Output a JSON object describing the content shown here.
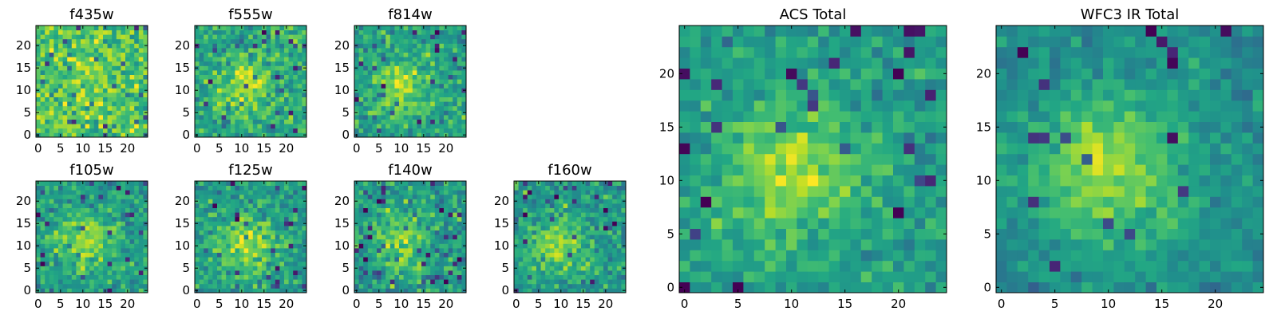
{
  "figure": {
    "colormap": "viridis",
    "frame_color": "#000000",
    "background": "#ffffff"
  },
  "chart_data": [
    {
      "type": "heatmap",
      "title": "f435w",
      "grid_size": 25,
      "xlim": [
        -0.5,
        24.5
      ],
      "ylim": [
        -0.5,
        24.5
      ],
      "origin": "lower",
      "x_ticks": [
        0,
        5,
        10,
        15,
        20
      ],
      "y_ticks": [
        0,
        5,
        10,
        15,
        20
      ],
      "x_tick_labels": [
        "0",
        "5",
        "10",
        "15",
        "20"
      ],
      "y_tick_labels": [
        "0",
        "5",
        "10",
        "15",
        "20"
      ],
      "structure": {
        "peak_center": [
          11,
          11
        ],
        "peak_amplitude": 0.05,
        "peak_sigma": 5,
        "noise": 0.24,
        "base": 0.72,
        "seed": 11
      }
    },
    {
      "type": "heatmap",
      "title": "f555w",
      "grid_size": 25,
      "xlim": [
        -0.5,
        24.5
      ],
      "ylim": [
        -0.5,
        24.5
      ],
      "origin": "lower",
      "x_ticks": [
        0,
        5,
        10,
        15,
        20
      ],
      "y_ticks": [
        0,
        5,
        10,
        15,
        20
      ],
      "x_tick_labels": [
        "0",
        "5",
        "10",
        "15",
        "20"
      ],
      "y_tick_labels": [
        "0",
        "5",
        "10",
        "15",
        "20"
      ],
      "structure": {
        "peak_center": [
          11,
          11
        ],
        "peak_amplitude": 0.22,
        "peak_sigma": 4,
        "noise": 0.22,
        "base": 0.62,
        "seed": 23
      }
    },
    {
      "type": "heatmap",
      "title": "f814w",
      "grid_size": 25,
      "xlim": [
        -0.5,
        24.5
      ],
      "ylim": [
        -0.5,
        24.5
      ],
      "origin": "lower",
      "x_ticks": [
        0,
        5,
        10,
        15,
        20
      ],
      "y_ticks": [
        0,
        5,
        10,
        15,
        20
      ],
      "x_tick_labels": [
        "0",
        "5",
        "10",
        "15",
        "20"
      ],
      "y_tick_labels": [
        "0",
        "5",
        "10",
        "15",
        "20"
      ],
      "structure": {
        "peak_center": [
          10,
          11
        ],
        "peak_amplitude": 0.3,
        "peak_sigma": 4,
        "noise": 0.2,
        "base": 0.58,
        "seed": 37
      }
    },
    {
      "type": "heatmap",
      "title": "f105w",
      "grid_size": 25,
      "xlim": [
        -0.5,
        24.5
      ],
      "ylim": [
        -0.5,
        24.5
      ],
      "origin": "lower",
      "x_ticks": [
        0,
        5,
        10,
        15,
        20
      ],
      "y_ticks": [
        0,
        5,
        10,
        15,
        20
      ],
      "x_tick_labels": [
        "0",
        "5",
        "10",
        "15",
        "20"
      ],
      "y_tick_labels": [
        "0",
        "5",
        "10",
        "15",
        "20"
      ],
      "structure": {
        "peak_center": [
          11,
          11
        ],
        "peak_amplitude": 0.3,
        "peak_sigma": 4.5,
        "noise": 0.18,
        "base": 0.55,
        "seed": 41
      }
    },
    {
      "type": "heatmap",
      "title": "f125w",
      "grid_size": 25,
      "xlim": [
        -0.5,
        24.5
      ],
      "ylim": [
        -0.5,
        24.5
      ],
      "origin": "lower",
      "x_ticks": [
        0,
        5,
        10,
        15,
        20
      ],
      "y_ticks": [
        0,
        5,
        10,
        15,
        20
      ],
      "x_tick_labels": [
        "0",
        "5",
        "10",
        "15",
        "20"
      ],
      "y_tick_labels": [
        "0",
        "5",
        "10",
        "15",
        "20"
      ],
      "structure": {
        "peak_center": [
          11,
          10
        ],
        "peak_amplitude": 0.3,
        "peak_sigma": 4.5,
        "noise": 0.2,
        "base": 0.56,
        "seed": 53
      }
    },
    {
      "type": "heatmap",
      "title": "f140w",
      "grid_size": 25,
      "xlim": [
        -0.5,
        24.5
      ],
      "ylim": [
        -0.5,
        24.5
      ],
      "origin": "lower",
      "x_ticks": [
        0,
        5,
        10,
        15,
        20
      ],
      "y_ticks": [
        0,
        5,
        10,
        15,
        20
      ],
      "x_tick_labels": [
        "0",
        "5",
        "10",
        "15",
        "20"
      ],
      "y_tick_labels": [
        "0",
        "5",
        "10",
        "15",
        "20"
      ],
      "structure": {
        "peak_center": [
          10,
          11
        ],
        "peak_amplitude": 0.28,
        "peak_sigma": 4.5,
        "noise": 0.22,
        "base": 0.54,
        "seed": 67
      }
    },
    {
      "type": "heatmap",
      "title": "f160w",
      "grid_size": 25,
      "xlim": [
        -0.5,
        24.5
      ],
      "ylim": [
        -0.5,
        24.5
      ],
      "origin": "lower",
      "x_ticks": [
        0,
        5,
        10,
        15,
        20
      ],
      "y_ticks": [
        0,
        5,
        10,
        15,
        20
      ],
      "x_tick_labels": [
        "0",
        "5",
        "10",
        "15",
        "20"
      ],
      "y_tick_labels": [
        "0",
        "5",
        "10",
        "15",
        "20"
      ],
      "structure": {
        "peak_center": [
          9,
          10
        ],
        "peak_amplitude": 0.3,
        "peak_sigma": 4.5,
        "noise": 0.2,
        "base": 0.54,
        "seed": 79
      }
    },
    {
      "type": "heatmap",
      "title": "ACS Total",
      "grid_size": 25,
      "xlim": [
        -0.5,
        24.5
      ],
      "ylim": [
        -0.5,
        24.5
      ],
      "origin": "lower",
      "x_ticks": [
        0,
        5,
        10,
        15,
        20
      ],
      "y_ticks": [
        0,
        5,
        10,
        15,
        20
      ],
      "x_tick_labels": [
        "0",
        "5",
        "10",
        "15",
        "20"
      ],
      "y_tick_labels": [
        "0",
        "5",
        "10",
        "15",
        "20"
      ],
      "structure": {
        "peak_center": [
          10,
          11
        ],
        "peak_amplitude": 0.3,
        "peak_sigma": 4.5,
        "noise": 0.16,
        "base": 0.55,
        "seed": 97
      }
    },
    {
      "type": "heatmap",
      "title": "WFC3 IR Total",
      "grid_size": 25,
      "xlim": [
        -0.5,
        24.5
      ],
      "ylim": [
        -0.5,
        24.5
      ],
      "origin": "lower",
      "x_ticks": [
        0,
        5,
        10,
        15,
        20
      ],
      "y_ticks": [
        0,
        5,
        10,
        15,
        20
      ],
      "x_tick_labels": [
        "0",
        "5",
        "10",
        "15",
        "20"
      ],
      "y_tick_labels": [
        "0",
        "5",
        "10",
        "15",
        "20"
      ],
      "structure": {
        "peak_center": [
          10,
          11
        ],
        "peak_amplitude": 0.38,
        "peak_sigma": 5,
        "noise": 0.13,
        "base": 0.48,
        "seed": 113
      }
    }
  ]
}
